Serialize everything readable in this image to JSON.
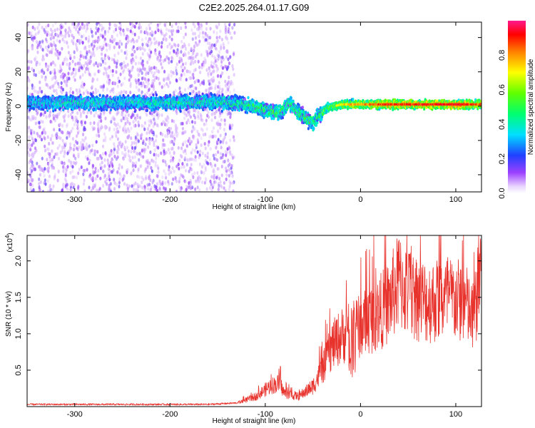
{
  "title": "C2E2.2025.264.01.17.G09",
  "chart_data": [
    {
      "type": "heatmap",
      "title": "C2E2.2025.264.01.17.G09",
      "xlabel": "Height of straight line (km)",
      "ylabel": "Frequency (Hz)",
      "xlim": [
        -350,
        127
      ],
      "ylim": [
        -50,
        49
      ],
      "xticks": [
        -300,
        -200,
        -100,
        0,
        100
      ],
      "yticks": [
        -40,
        -20,
        0,
        20,
        40
      ],
      "xtick_labels": [
        "-300",
        "-200",
        "-100",
        "0",
        "100"
      ],
      "ytick_labels": [
        "-40",
        "-20",
        "0",
        "20",
        "40"
      ],
      "colorbar": {
        "label": "Normalized spectral amplitude",
        "range": [
          0,
          1
        ],
        "ticks": [
          0.0,
          0.2,
          0.4,
          0.6,
          0.8
        ],
        "tick_labels": [
          "0.0",
          "0.2",
          "0.4",
          "0.6",
          "0.8"
        ],
        "colormap": "rainbow"
      },
      "band_center": [
        [
          -350,
          2
        ],
        [
          -300,
          2
        ],
        [
          -250,
          2
        ],
        [
          -200,
          2
        ],
        [
          -150,
          2.5
        ],
        [
          -120,
          1
        ],
        [
          -100,
          -2
        ],
        [
          -85,
          -4
        ],
        [
          -75,
          2
        ],
        [
          -65,
          -4
        ],
        [
          -50,
          -10
        ],
        [
          -45,
          -6
        ],
        [
          -35,
          -1
        ],
        [
          -20,
          1
        ],
        [
          0,
          1
        ],
        [
          50,
          1
        ],
        [
          127,
          1
        ]
      ],
      "band_amplitude": [
        [
          -350,
          0.4
        ],
        [
          -300,
          0.45
        ],
        [
          -250,
          0.4
        ],
        [
          -200,
          0.45
        ],
        [
          -150,
          0.45
        ],
        [
          -110,
          0.5
        ],
        [
          -85,
          0.55
        ],
        [
          -70,
          0.5
        ],
        [
          -50,
          0.55
        ],
        [
          -30,
          0.6
        ],
        [
          -15,
          0.7
        ],
        [
          0,
          0.75
        ],
        [
          30,
          0.85
        ],
        [
          60,
          0.85
        ],
        [
          100,
          0.9
        ],
        [
          127,
          0.8
        ]
      ],
      "scatter_noise_until_x": -140
    },
    {
      "type": "line",
      "xlabel": "Height of straight line (km)",
      "ylabel": "SNR (10 * v/v)",
      "multiplier_label": "(x10",
      "multiplier_exponent": "4",
      "multiplier_close": ")",
      "xlim": [
        -350,
        127
      ],
      "ylim": [
        0,
        2.35
      ],
      "xticks": [
        -300,
        -200,
        -100,
        0,
        100
      ],
      "yticks": [
        0.5,
        1.0,
        1.5,
        2.0
      ],
      "xtick_labels": [
        "-300",
        "-200",
        "-100",
        "0",
        "100"
      ],
      "ytick_labels": [
        "0.5",
        "1.0",
        "1.5",
        "2.0"
      ],
      "color": "#e8322c",
      "series": [
        {
          "name": "SNR",
          "trend": [
            [
              -350,
              0.03
            ],
            [
              -250,
              0.03
            ],
            [
              -160,
              0.03
            ],
            [
              -130,
              0.05
            ],
            [
              -110,
              0.15
            ],
            [
              -95,
              0.3
            ],
            [
              -85,
              0.35
            ],
            [
              -80,
              0.2
            ],
            [
              -65,
              0.15
            ],
            [
              -50,
              0.3
            ],
            [
              -40,
              0.55
            ],
            [
              -30,
              0.9
            ],
            [
              -20,
              1.05
            ],
            [
              -10,
              1.1
            ],
            [
              0,
              1.2
            ],
            [
              10,
              1.3
            ],
            [
              20,
              1.4
            ],
            [
              30,
              1.55
            ],
            [
              40,
              1.85
            ],
            [
              50,
              1.7
            ],
            [
              70,
              1.55
            ],
            [
              90,
              1.6
            ],
            [
              110,
              1.55
            ],
            [
              118,
              1.25
            ],
            [
              122,
              1.6
            ],
            [
              127,
              2.25
            ]
          ]
        }
      ]
    }
  ]
}
